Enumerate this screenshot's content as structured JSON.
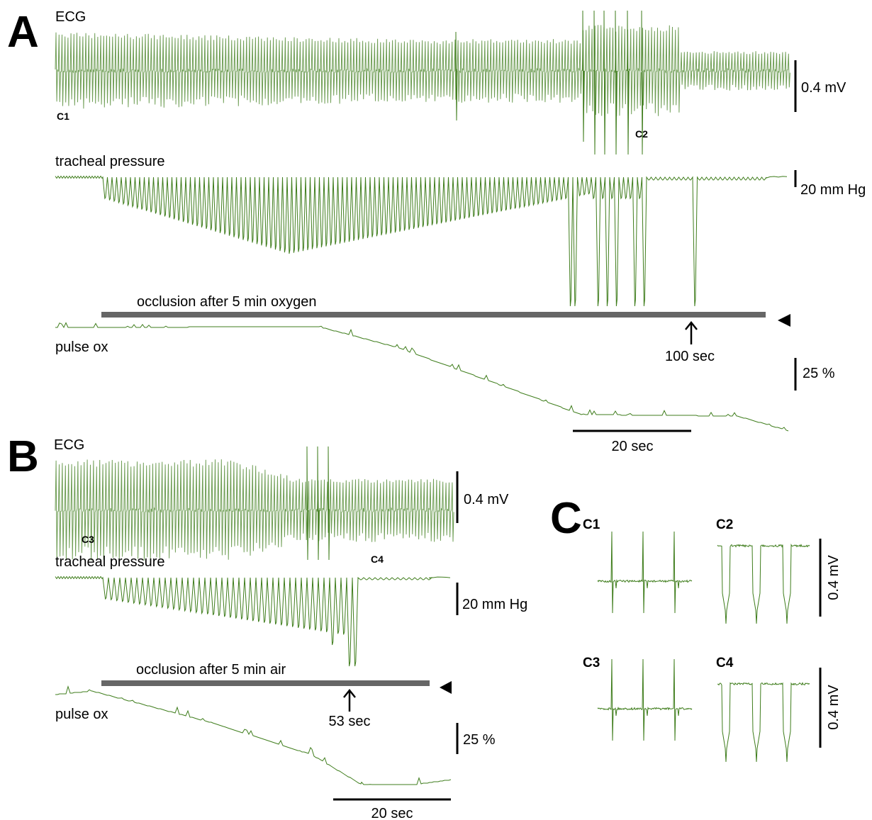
{
  "panel_a": {
    "label": "A",
    "ecg": "ECG",
    "ecg_scale": "0.4 mV",
    "markers": [
      "C1",
      "C2"
    ],
    "pressure": "tracheal pressure",
    "pressure_scale": "20 mm Hg",
    "occlusion": "occlusion after 5 min oxygen",
    "arrow": "100 sec",
    "pulse_ox": "pulse ox",
    "ox_scale": "25 %",
    "time_scale": "20 sec"
  },
  "panel_b": {
    "label": "B",
    "ecg": "ECG",
    "ecg_scale": "0.4 mV",
    "markers": [
      "C3",
      "C4"
    ],
    "pressure": "tracheal pressure",
    "pressure_scale": "20 mm Hg",
    "occlusion": "occlusion after 5 min air",
    "arrow": "53 sec",
    "pulse_ox": "pulse ox",
    "ox_scale": "25 %",
    "time_scale": "20 sec"
  },
  "panel_c": {
    "label": "C",
    "insets": [
      "C1",
      "C2",
      "C3",
      "C4"
    ],
    "scales": [
      "0.4 mV",
      "0.4 mV"
    ]
  }
}
